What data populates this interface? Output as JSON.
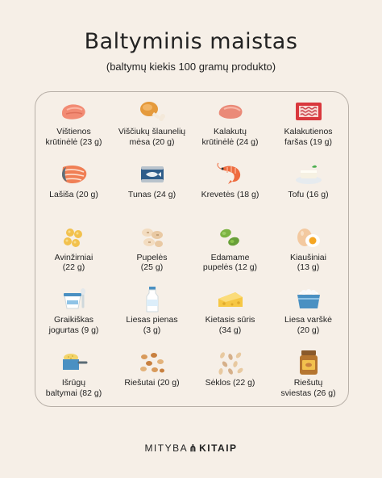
{
  "header": {
    "title": "Baltyminis maistas",
    "subtitle": "(baltymų kiekis 100 gramų produkto)"
  },
  "items": [
    {
      "label": "Vištienos\nkrūtinėlė (23 g)",
      "icon": "chicken-breast-icon"
    },
    {
      "label": "Viščiukų šlaunelių\nmėsa (20 g)",
      "icon": "chicken-leg-icon"
    },
    {
      "label": "Kalakutų\nkrūtinėlė (24 g)",
      "icon": "turkey-breast-icon"
    },
    {
      "label": "Kalakutienos\nfaršas (19 g)",
      "icon": "minced-meat-icon"
    },
    {
      "label": "Lašiša (20 g)",
      "icon": "salmon-icon"
    },
    {
      "label": "Tunas (24 g)",
      "icon": "tuna-can-icon"
    },
    {
      "label": "Krevetės (18 g)",
      "icon": "shrimp-icon"
    },
    {
      "label": "Tofu (16 g)",
      "icon": "tofu-icon"
    },
    {
      "label": "Avinžirniai\n(22 g)",
      "icon": "chickpeas-icon"
    },
    {
      "label": "Pupelės\n(25 g)",
      "icon": "beans-icon"
    },
    {
      "label": "Edamame\npupelės (12 g)",
      "icon": "edamame-icon"
    },
    {
      "label": "Kiaušiniai\n(13 g)",
      "icon": "eggs-icon"
    },
    {
      "label": "Graikiškas\njogurtas (9 g)",
      "icon": "yogurt-icon"
    },
    {
      "label": "Liesas pienas\n(3 g)",
      "icon": "milk-bottle-icon"
    },
    {
      "label": "Kietasis sūris\n(34 g)",
      "icon": "cheese-icon"
    },
    {
      "label": "Liesa varškė\n(20 g)",
      "icon": "cottage-cheese-icon"
    },
    {
      "label": "Išrūgų\nbaltymai (82 g)",
      "icon": "whey-protein-icon"
    },
    {
      "label": "Riešutai (20 g)",
      "icon": "nuts-icon"
    },
    {
      "label": "Sėklos (22 g)",
      "icon": "seeds-icon"
    },
    {
      "label": "Riešutų\nsviestas (26 g)",
      "icon": "peanut-butter-icon"
    }
  ],
  "footer": {
    "logo_left": "MITYBA",
    "logo_right": "KITAIP"
  }
}
